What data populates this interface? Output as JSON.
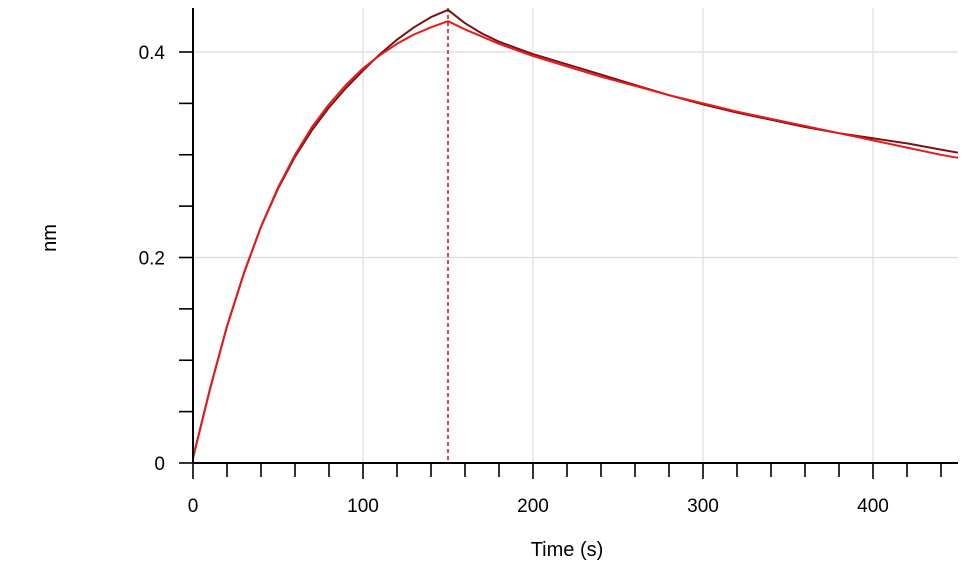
{
  "chart_data": {
    "type": "line",
    "title": "",
    "xlabel": "Time (s)",
    "ylabel": "nm",
    "xlim": [
      0,
      450
    ],
    "ylim": [
      0,
      0.44
    ],
    "grid": true,
    "x_ticks": [
      0,
      100,
      200,
      300,
      400
    ],
    "x_tick_labels": [
      "0",
      "100",
      "200",
      "300",
      "400"
    ],
    "x_minor_step": 20,
    "y_ticks": [
      0,
      0.2,
      0.4
    ],
    "y_tick_labels": [
      "0",
      "0.2",
      "0.4"
    ],
    "y_minor_step": 0.05,
    "vertical_markers": [
      0,
      150
    ],
    "series": [
      {
        "color": "#7a1414",
        "points": [
          [
            0,
            0.005
          ],
          [
            10,
            0.072
          ],
          [
            20,
            0.133
          ],
          [
            30,
            0.185
          ],
          [
            40,
            0.23
          ],
          [
            50,
            0.267
          ],
          [
            60,
            0.298
          ],
          [
            70,
            0.324
          ],
          [
            80,
            0.346
          ],
          [
            90,
            0.365
          ],
          [
            100,
            0.382
          ],
          [
            110,
            0.398
          ],
          [
            120,
            0.412
          ],
          [
            130,
            0.424
          ],
          [
            140,
            0.434
          ],
          [
            150,
            0.441
          ],
          [
            160,
            0.428
          ],
          [
            170,
            0.418
          ],
          [
            180,
            0.41
          ],
          [
            190,
            0.404
          ],
          [
            200,
            0.398
          ],
          [
            220,
            0.388
          ],
          [
            240,
            0.378
          ],
          [
            260,
            0.368
          ],
          [
            280,
            0.358
          ],
          [
            300,
            0.349
          ],
          [
            320,
            0.341
          ],
          [
            340,
            0.334
          ],
          [
            360,
            0.327
          ],
          [
            380,
            0.321
          ],
          [
            400,
            0.316
          ],
          [
            420,
            0.311
          ],
          [
            440,
            0.305
          ],
          [
            450,
            0.302
          ]
        ]
      },
      {
        "color": "#e8191c",
        "points": [
          [
            0,
            0.005
          ],
          [
            10,
            0.072
          ],
          [
            20,
            0.133
          ],
          [
            30,
            0.185
          ],
          [
            40,
            0.23
          ],
          [
            50,
            0.268
          ],
          [
            60,
            0.3
          ],
          [
            70,
            0.327
          ],
          [
            80,
            0.349
          ],
          [
            90,
            0.368
          ],
          [
            100,
            0.384
          ],
          [
            110,
            0.397
          ],
          [
            120,
            0.408
          ],
          [
            130,
            0.417
          ],
          [
            140,
            0.424
          ],
          [
            150,
            0.43
          ],
          [
            160,
            0.422
          ],
          [
            170,
            0.415
          ],
          [
            180,
            0.408
          ],
          [
            190,
            0.402
          ],
          [
            200,
            0.396
          ],
          [
            220,
            0.386
          ],
          [
            240,
            0.376
          ],
          [
            260,
            0.367
          ],
          [
            280,
            0.358
          ],
          [
            300,
            0.35
          ],
          [
            320,
            0.342
          ],
          [
            340,
            0.335
          ],
          [
            360,
            0.328
          ],
          [
            380,
            0.321
          ],
          [
            400,
            0.314
          ],
          [
            420,
            0.307
          ],
          [
            440,
            0.3
          ],
          [
            450,
            0.297
          ]
        ]
      }
    ]
  }
}
